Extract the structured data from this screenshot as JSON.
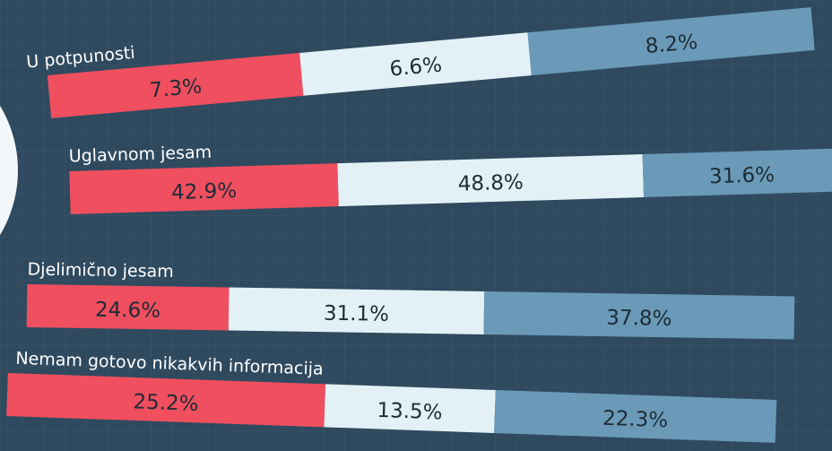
{
  "chart_data": {
    "type": "bar",
    "categories": [
      "U potpunosti",
      "Uglavnom jesam",
      "Djelimično jesam",
      "Nemam gotovo nikakvih informacija"
    ],
    "series": [
      {
        "color": "#ef4f5f",
        "values": [
          7.3,
          42.9,
          24.6,
          25.2
        ],
        "value_labels": [
          "7.3%",
          "42.9%",
          "24.6%",
          "25.2%"
        ]
      },
      {
        "color": "#e3f1f6",
        "values": [
          6.6,
          48.8,
          31.1,
          13.5
        ],
        "value_labels": [
          "6.6%",
          "48.8%",
          "31.1%",
          "13.5%"
        ]
      },
      {
        "color": "#6a9ab8",
        "values": [
          8.2,
          31.6,
          37.8,
          22.3
        ],
        "value_labels": [
          "8.2%",
          "31.6%",
          "37.8%",
          "22.3%"
        ]
      }
    ]
  }
}
